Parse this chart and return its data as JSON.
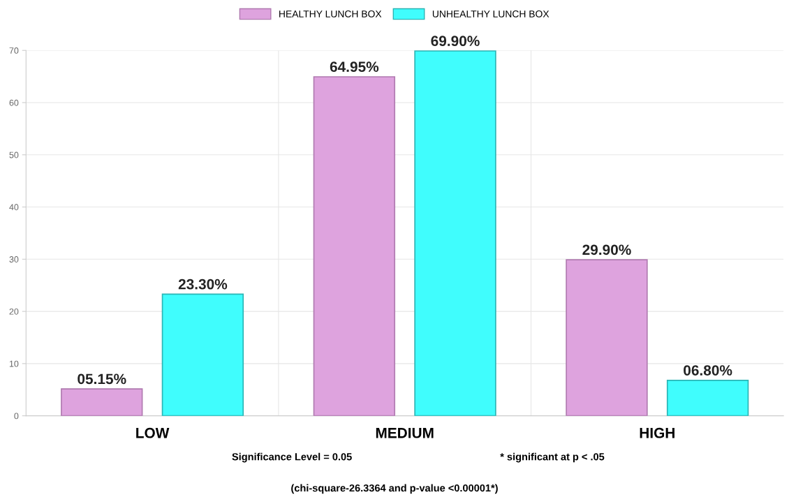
{
  "chart_data": {
    "type": "bar",
    "categories": [
      "LOW",
      "MEDIUM",
      "HIGH"
    ],
    "series": [
      {
        "name": "HEALTHY LUNCH BOX",
        "color": "#dea3de",
        "values": [
          5.15,
          64.95,
          29.9
        ],
        "value_labels": [
          "05.15%",
          "64.95%",
          "29.90%"
        ]
      },
      {
        "name": "UNHEALTHY LUNCH BOX",
        "color": "#40fdfd",
        "values": [
          23.3,
          69.9,
          6.8
        ],
        "value_labels": [
          "23.30%",
          "69.90%",
          "06.80%"
        ]
      }
    ],
    "ylim": [
      0,
      70
    ],
    "yticks": [
      0,
      10,
      20,
      30,
      40,
      50,
      60,
      70
    ],
    "grid": true,
    "legend": "top",
    "annotations": [
      "Significance Level = 0.05",
      "* significant at p < .05",
      "(chi-square-26.3364 and p-value <0.00001*)"
    ]
  }
}
